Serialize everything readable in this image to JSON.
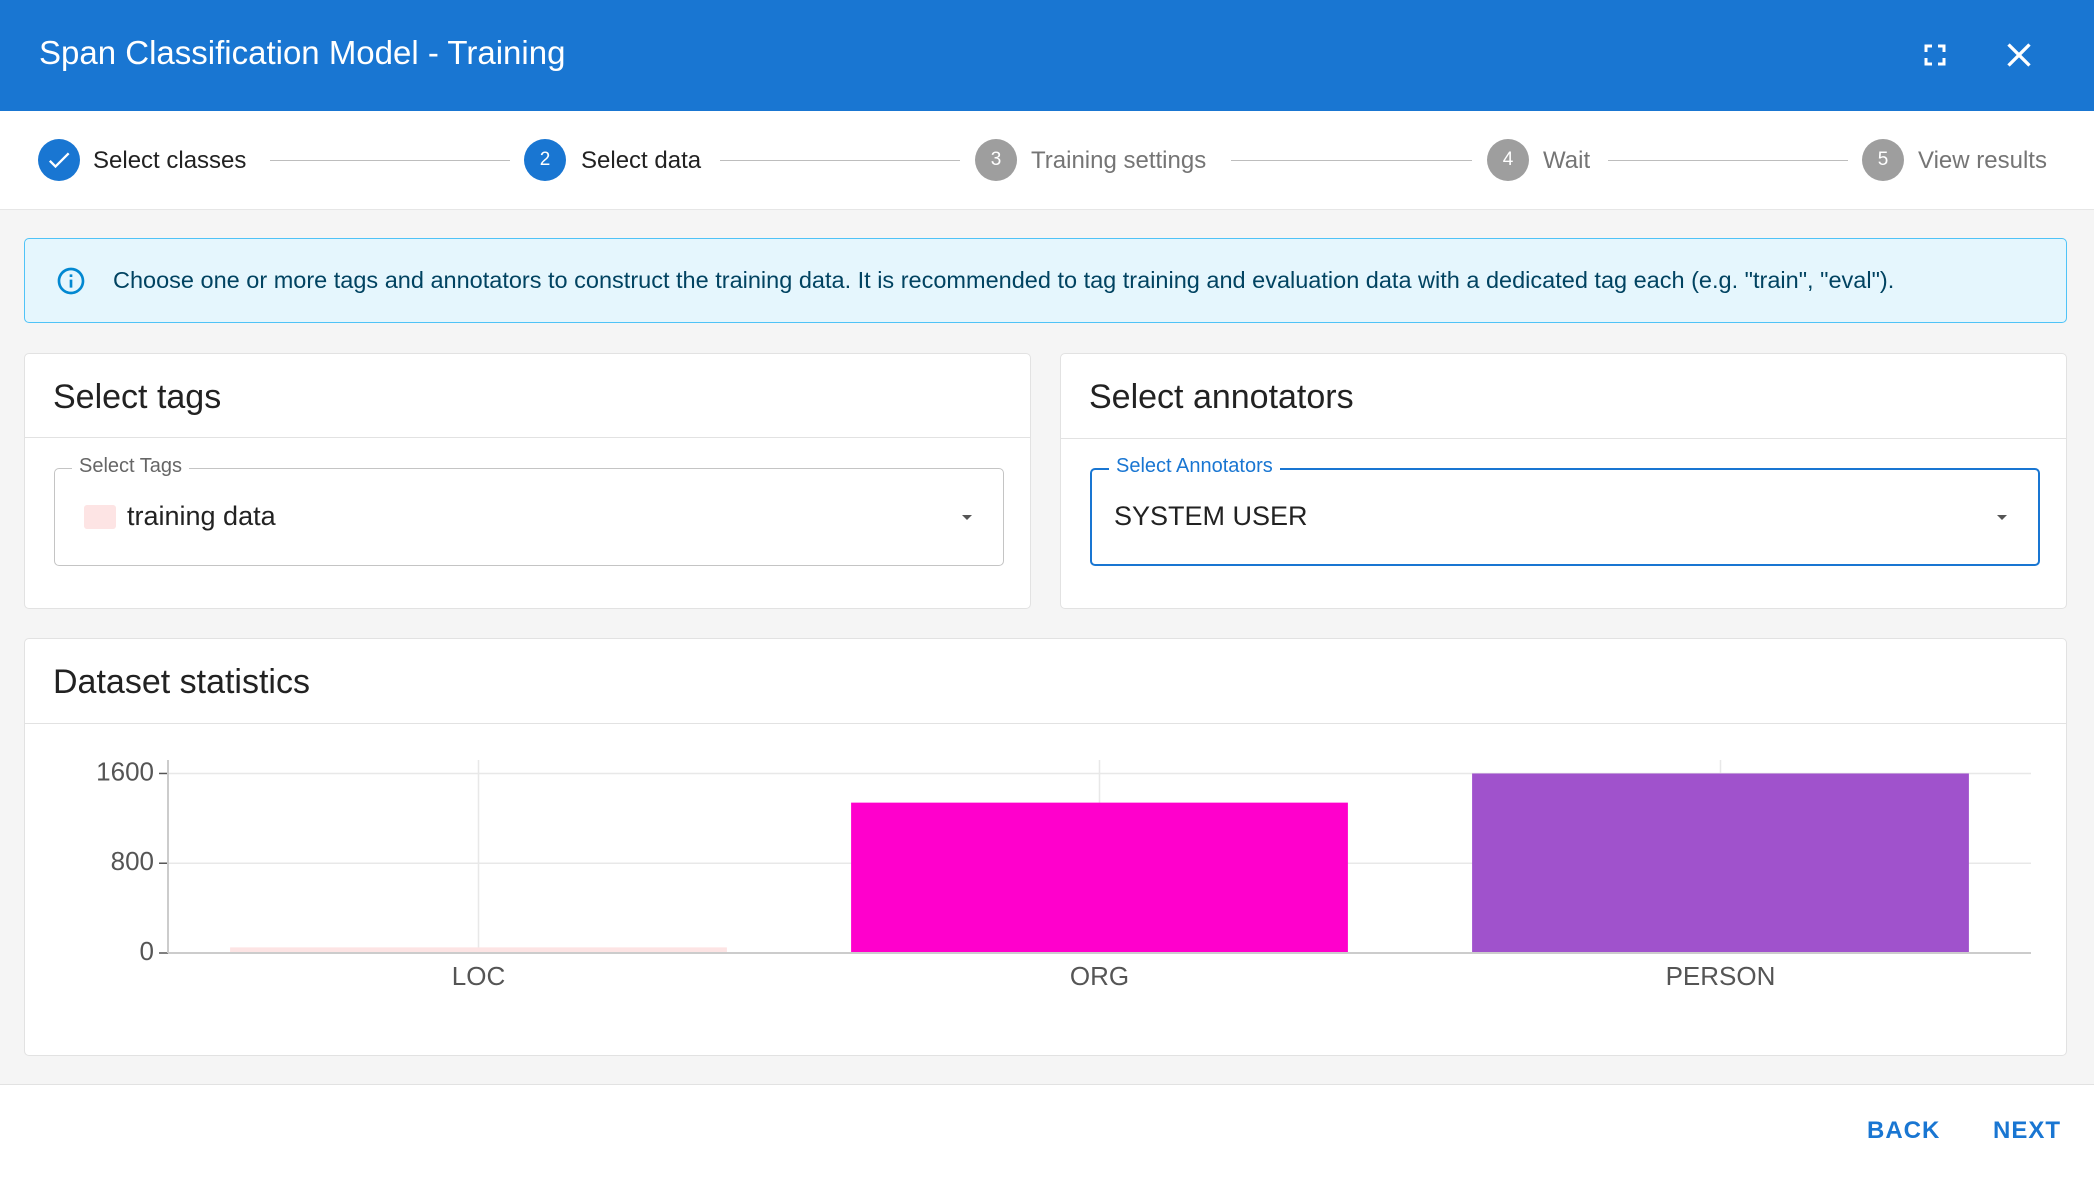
{
  "header": {
    "title": "Span Classification Model - Training"
  },
  "stepper": {
    "steps": [
      {
        "label": "Select classes"
      },
      {
        "number": 2,
        "label": "Select data"
      },
      {
        "number": 3,
        "label": "Training settings"
      },
      {
        "number": 4,
        "label": "Wait"
      },
      {
        "number": 5,
        "label": "View results"
      }
    ]
  },
  "alert": {
    "text": "Choose one or more tags and annotators to construct the training data. It is recommended to tag training and evaluation data with a dedicated tag each (e.g. \"train\", \"eval\")."
  },
  "tags_card": {
    "title": "Select tags",
    "field_label": "Select Tags",
    "value": "training data"
  },
  "annotators_card": {
    "title": "Select annotators",
    "field_label": "Select Annotators",
    "value": "SYSTEM USER"
  },
  "stats_card": {
    "title": "Dataset statistics"
  },
  "chart_data": {
    "type": "bar",
    "categories": [
      "LOC",
      "ORG",
      "PERSON"
    ],
    "values": [
      50,
      1340,
      1600
    ],
    "colors": [
      "#fde4e4",
      "#ff00cc",
      "#a052cc"
    ],
    "ylim": [
      0,
      1720
    ],
    "yticks": [
      0,
      800,
      1600
    ],
    "grid": true
  },
  "footer": {
    "back": "BACK",
    "next": "NEXT"
  }
}
